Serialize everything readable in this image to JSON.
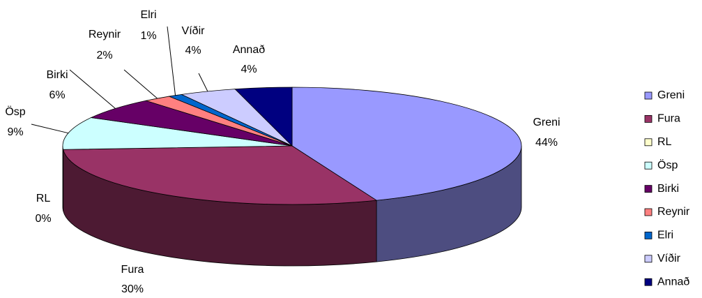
{
  "chart_data": {
    "type": "pie",
    "categories": [
      "Greni",
      "Fura",
      "RL",
      "Ösp",
      "Birki",
      "Reynir",
      "Elri",
      "Víðir",
      "Annað"
    ],
    "values": [
      44,
      30,
      0,
      9,
      6,
      2,
      1,
      4,
      4
    ],
    "value_labels": [
      "44%",
      "30%",
      "0%",
      "9%",
      "6%",
      "2%",
      "1%",
      "4%",
      "4%"
    ],
    "colors": [
      "#9999ff",
      "#993366",
      "#ffffcc",
      "#ccffff",
      "#660066",
      "#ff8080",
      "#0066cc",
      "#ccccff",
      "#000080"
    ],
    "legend": "right"
  }
}
